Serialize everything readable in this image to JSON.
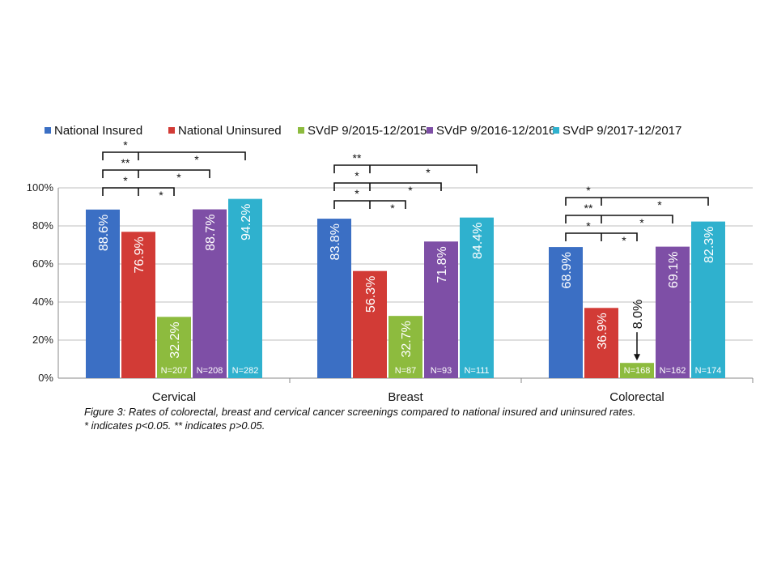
{
  "chart_data": {
    "type": "bar",
    "categories": [
      "Cervical",
      "Breast",
      "Colorectal"
    ],
    "series": [
      {
        "name": "National Insured",
        "color": "#3B6FC4",
        "values": [
          88.6,
          83.8,
          68.9
        ],
        "value_labels": [
          "88.6%",
          "83.8%",
          "68.9%"
        ],
        "n_labels": [
          "",
          "",
          ""
        ]
      },
      {
        "name": "National Uninsured",
        "color": "#D23B36",
        "values": [
          76.9,
          56.3,
          36.9
        ],
        "value_labels": [
          "76.9%",
          "56.3%",
          "36.9%"
        ],
        "n_labels": [
          "",
          "",
          ""
        ]
      },
      {
        "name": "SVdP 9/2015-12/2015",
        "color": "#8DBB3E",
        "values": [
          32.2,
          32.7,
          8.0
        ],
        "value_labels": [
          "32.2%",
          "32.7%",
          "8.0%"
        ],
        "n_labels": [
          "N=207",
          "N=87",
          "N=168"
        ]
      },
      {
        "name": "SVdP 9/2016-12/2016",
        "color": "#7E4FA6",
        "values": [
          88.7,
          71.8,
          69.1
        ],
        "value_labels": [
          "88.7%",
          "71.8%",
          "69.1%"
        ],
        "n_labels": [
          "N=208",
          "N=93",
          "N=162"
        ]
      },
      {
        "name": "SVdP 9/2017-12/2017",
        "color": "#2FB1CE",
        "values": [
          94.2,
          84.4,
          82.3
        ],
        "value_labels": [
          "94.2%",
          "84.4%",
          "82.3%"
        ],
        "n_labels": [
          "N=282",
          "N=111",
          "N=174"
        ]
      }
    ],
    "ylim": [
      0,
      100
    ],
    "yticks": [
      0,
      20,
      40,
      60,
      80,
      100
    ],
    "ytick_labels": [
      "0%",
      "20%",
      "40%",
      "60%",
      "80%",
      "100%"
    ],
    "grid": true,
    "legend_position": "top",
    "significance": [
      [
        {
          "series": 2,
          "marker": "*"
        },
        {
          "series": 3,
          "marker": "**"
        },
        {
          "series": 4,
          "marker": "*"
        }
      ],
      [
        {
          "series": 2,
          "marker": "*"
        },
        {
          "series": 3,
          "marker": "*"
        },
        {
          "series": 4,
          "marker": "**"
        }
      ],
      [
        {
          "series": 2,
          "marker": "*"
        },
        {
          "series": 3,
          "marker": "**"
        },
        {
          "series": 4,
          "marker": "*"
        }
      ]
    ],
    "significance_uninsured": [
      [
        {
          "series": 2,
          "marker": "*"
        },
        {
          "series": 3,
          "marker": "*"
        },
        {
          "series": 4,
          "marker": "*"
        }
      ],
      [
        {
          "series": 2,
          "marker": "*"
        },
        {
          "series": 3,
          "marker": "*"
        },
        {
          "series": 4,
          "marker": "*"
        }
      ],
      [
        {
          "series": 2,
          "marker": "*"
        },
        {
          "series": 3,
          "marker": "*"
        },
        {
          "series": 4,
          "marker": "*"
        }
      ]
    ]
  },
  "caption": {
    "line1": "Figure 3: Rates of colorectal, breast and cervical cancer screenings compared to national insured and uninsured rates.",
    "line2": "* indicates p<0.05. ** indicates p>0.05."
  }
}
